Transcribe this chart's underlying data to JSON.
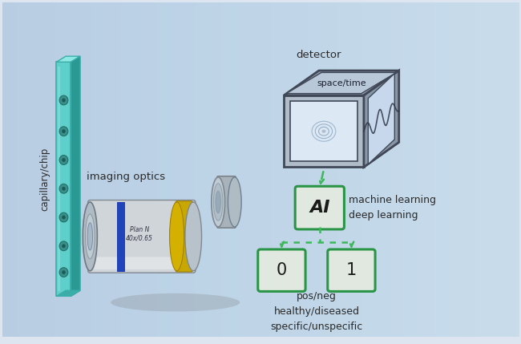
{
  "fig_width": 6.5,
  "fig_height": 4.29,
  "dpi": 100,
  "bg_color_light": "#f0f4f8",
  "bg_color_dark": "#c8d4e0",
  "labels": {
    "capillary": "capillary/chip",
    "imaging_optics": "imaging optics",
    "detector": "detector",
    "space_time": "space/time",
    "ai_box": "AI",
    "ml": "machine learning\ndeep learning",
    "box0": "0",
    "box1": "1",
    "classification": "pos/neg\nhealthy/diseased\nspecific/unspecific"
  },
  "green_color": "#3db85a",
  "green_dark": "#2a9447",
  "box_fill": "#e0e8e0",
  "capillary_color": "#5ecfca",
  "capillary_edge": "#3aada8",
  "capillary_top": "#8ee8e4",
  "capillary_side": "#2a9994",
  "lens_body": "#c8cdd2",
  "lens_dark": "#888f96",
  "cube_front": "#d0dae6",
  "cube_top": "#b8c8d8",
  "cube_right": "#a8b8cc",
  "cube_edge": "#505868",
  "cube_glass_front": "#dce8f4",
  "cube_glass_right": "#c8d8ec",
  "text_color": "#2a2a2a",
  "shadow_color": "#909090"
}
